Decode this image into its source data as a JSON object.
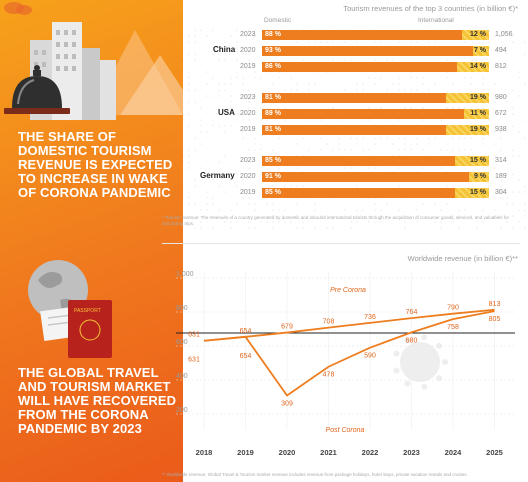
{
  "headlines": {
    "top": "THE SHARE OF DOMESTIC TOURISM REVENUE IS EXPECTED TO INCREASE IN WAKE OF CORONA PANDEMIC",
    "bottom": "THE GLOBAL TRAVEL AND TOURISM MARKET WILL HAVE RECOVERED FROM THE CORONA PANDEMIC BY 2023"
  },
  "bars_panel": {
    "title": "Tourism revenues of the top 3 countries (in billion €)*",
    "legend_domestic": "Domestic",
    "legend_international": "International",
    "footnote": "* Tourism revenue: The revenues of a country generated by domestic and inbound international tourists through the acquisition of consumer goods, services, and valuables for and during trips."
  },
  "line_panel": {
    "title": "Worldwide revenue (in billion €)**",
    "label_pre": "Pre Corona",
    "label_post": "Post Corona",
    "footnote": "** Worldwide revenue: Global Travel & Tourism market revenue includes revenue from package holidays, hotel stays, private vacation rentals and cruises."
  },
  "colors": {
    "domestic": "#ee7d1f",
    "international": "#f5c233",
    "line": "#ee7d1f"
  },
  "chart_data": [
    {
      "type": "bar",
      "title": "Tourism revenues of the top 3 countries (in billion €)*",
      "groups": [
        {
          "country": "China",
          "rows": [
            {
              "year": "2023",
              "domestic": "88 %",
              "international": "12 %",
              "total": "1,056",
              "dom": 88
            },
            {
              "year": "2020",
              "domestic": "93 %",
              "international": "7 %",
              "total": "494",
              "dom": 93
            },
            {
              "year": "2019",
              "domestic": "86 %",
              "international": "14 %",
              "total": "812",
              "dom": 86
            }
          ]
        },
        {
          "country": "USA",
          "rows": [
            {
              "year": "2023",
              "domestic": "81 %",
              "international": "19 %",
              "total": "980",
              "dom": 81
            },
            {
              "year": "2020",
              "domestic": "89 %",
              "international": "11 %",
              "total": "672",
              "dom": 89
            },
            {
              "year": "2019",
              "domestic": "81 %",
              "international": "19 %",
              "total": "938",
              "dom": 81
            }
          ]
        },
        {
          "country": "Germany",
          "rows": [
            {
              "year": "2023",
              "domestic": "85 %",
              "international": "15 %",
              "total": "314",
              "dom": 85
            },
            {
              "year": "2020",
              "domestic": "91 %",
              "international": "9 %",
              "total": "189",
              "dom": 91
            },
            {
              "year": "2019",
              "domestic": "85 %",
              "international": "15 %",
              "total": "304",
              "dom": 85
            }
          ]
        }
      ]
    },
    {
      "type": "line",
      "title": "Worldwide revenue (in billion €)**",
      "x": [
        "2018",
        "2019",
        "2020",
        "2021",
        "2022",
        "2023",
        "2024",
        "2025"
      ],
      "ylim": [
        200,
        1000
      ],
      "yticks": [
        "1,000",
        "800",
        "600",
        "400",
        "200"
      ],
      "ytick_values": [
        1000,
        800,
        600,
        400,
        200
      ],
      "series": [
        {
          "name": "Pre Corona",
          "values": [
            631,
            654,
            679,
            708,
            736,
            764,
            790,
            813
          ]
        },
        {
          "name": "Post Corona",
          "values": [
            631,
            654,
            309,
            478,
            590,
            680,
            758,
            805
          ]
        }
      ]
    }
  ]
}
